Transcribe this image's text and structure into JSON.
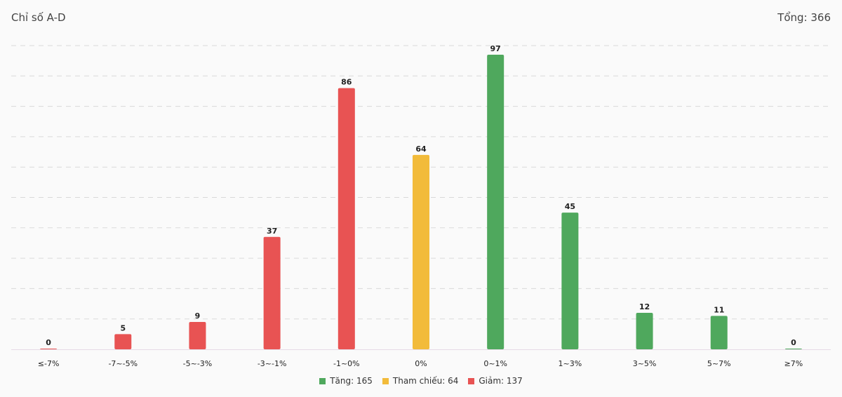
{
  "header": {
    "title": "Chỉ số A-D",
    "total": "Tổng: 366"
  },
  "colors": {
    "up": "#4fa85d",
    "ref": "#f2bb3a",
    "down": "#e85353",
    "grid": "#d9d9d9",
    "baseline": "#e6dbe6"
  },
  "legend": [
    {
      "label": "Tăng: 165",
      "color": "#4fa85d"
    },
    {
      "label": "Tham chiếu: 64",
      "color": "#f2bb3a"
    },
    {
      "label": "Giảm: 137",
      "color": "#e85353"
    }
  ],
  "chart_data": {
    "type": "bar",
    "categories": [
      "≤-7%",
      "-7~-5%",
      "-5~-3%",
      "-3~-1%",
      "-1~0%",
      "0%",
      "0~1%",
      "1~3%",
      "3~5%",
      "5~7%",
      "≥7%"
    ],
    "values": [
      0,
      5,
      9,
      37,
      86,
      64,
      97,
      45,
      12,
      11,
      0
    ],
    "bar_colors": [
      "#e85353",
      "#e85353",
      "#e85353",
      "#e85353",
      "#e85353",
      "#f2bb3a",
      "#4fa85d",
      "#4fa85d",
      "#4fa85d",
      "#4fa85d",
      "#4fa85d"
    ],
    "ylim": [
      0,
      100
    ],
    "grid": true,
    "legend_position": "bottom-center"
  }
}
